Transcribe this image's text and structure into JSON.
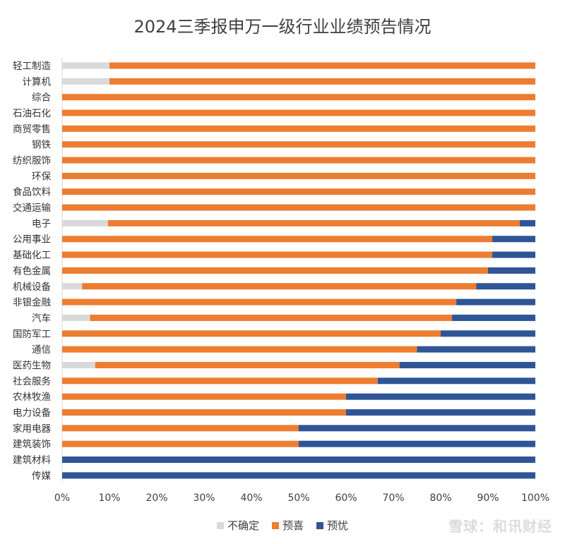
{
  "chart_data": {
    "type": "bar",
    "orientation": "horizontal",
    "stacked": "100%",
    "title": "2024三季报申万一级行业业绩预告情况",
    "categories": [
      "轻工制造",
      "计算机",
      "综合",
      "石油石化",
      "商贸零售",
      "钢铁",
      "纺织服饰",
      "环保",
      "食品饮料",
      "交通运输",
      "电子",
      "公用事业",
      "基础化工",
      "有色金属",
      "机械设备",
      "非银金融",
      "汽车",
      "国防军工",
      "通信",
      "医药生物",
      "社会服务",
      "农林牧渔",
      "电力设备",
      "家用电器",
      "建筑装饰",
      "建筑材料",
      "传媒"
    ],
    "series": [
      {
        "name": "不确定",
        "color": "#d9d9d9",
        "values": [
          10,
          10,
          0,
          0,
          0,
          0,
          0,
          0,
          0,
          0,
          9.7,
          0,
          0,
          0,
          4.2,
          0,
          5.9,
          0,
          0,
          7,
          0,
          0,
          0,
          0,
          0,
          0,
          0
        ]
      },
      {
        "name": "预喜",
        "color": "#ed7d31",
        "values": [
          90,
          90,
          100,
          100,
          100,
          100,
          100,
          100,
          100,
          100,
          87,
          90.9,
          90.9,
          90,
          83.3,
          83.3,
          76.5,
          80,
          75,
          64.3,
          66.7,
          60,
          60,
          50,
          50,
          0,
          0
        ]
      },
      {
        "name": "预忧",
        "color": "#2f5597",
        "values": [
          0,
          0,
          0,
          0,
          0,
          0,
          0,
          0,
          0,
          0,
          3.3,
          9.1,
          9.1,
          10,
          12.5,
          16.7,
          17.6,
          20,
          25,
          28.7,
          33.3,
          40,
          40,
          50,
          50,
          100,
          100
        ]
      }
    ],
    "xlim": [
      0,
      100
    ],
    "xticks": [
      "0%",
      "10%",
      "20%",
      "30%",
      "40%",
      "50%",
      "60%",
      "70%",
      "80%",
      "90%",
      "100%"
    ],
    "legend_position": "bottom",
    "grid": false
  },
  "watermark": "雪球：和讯财经"
}
